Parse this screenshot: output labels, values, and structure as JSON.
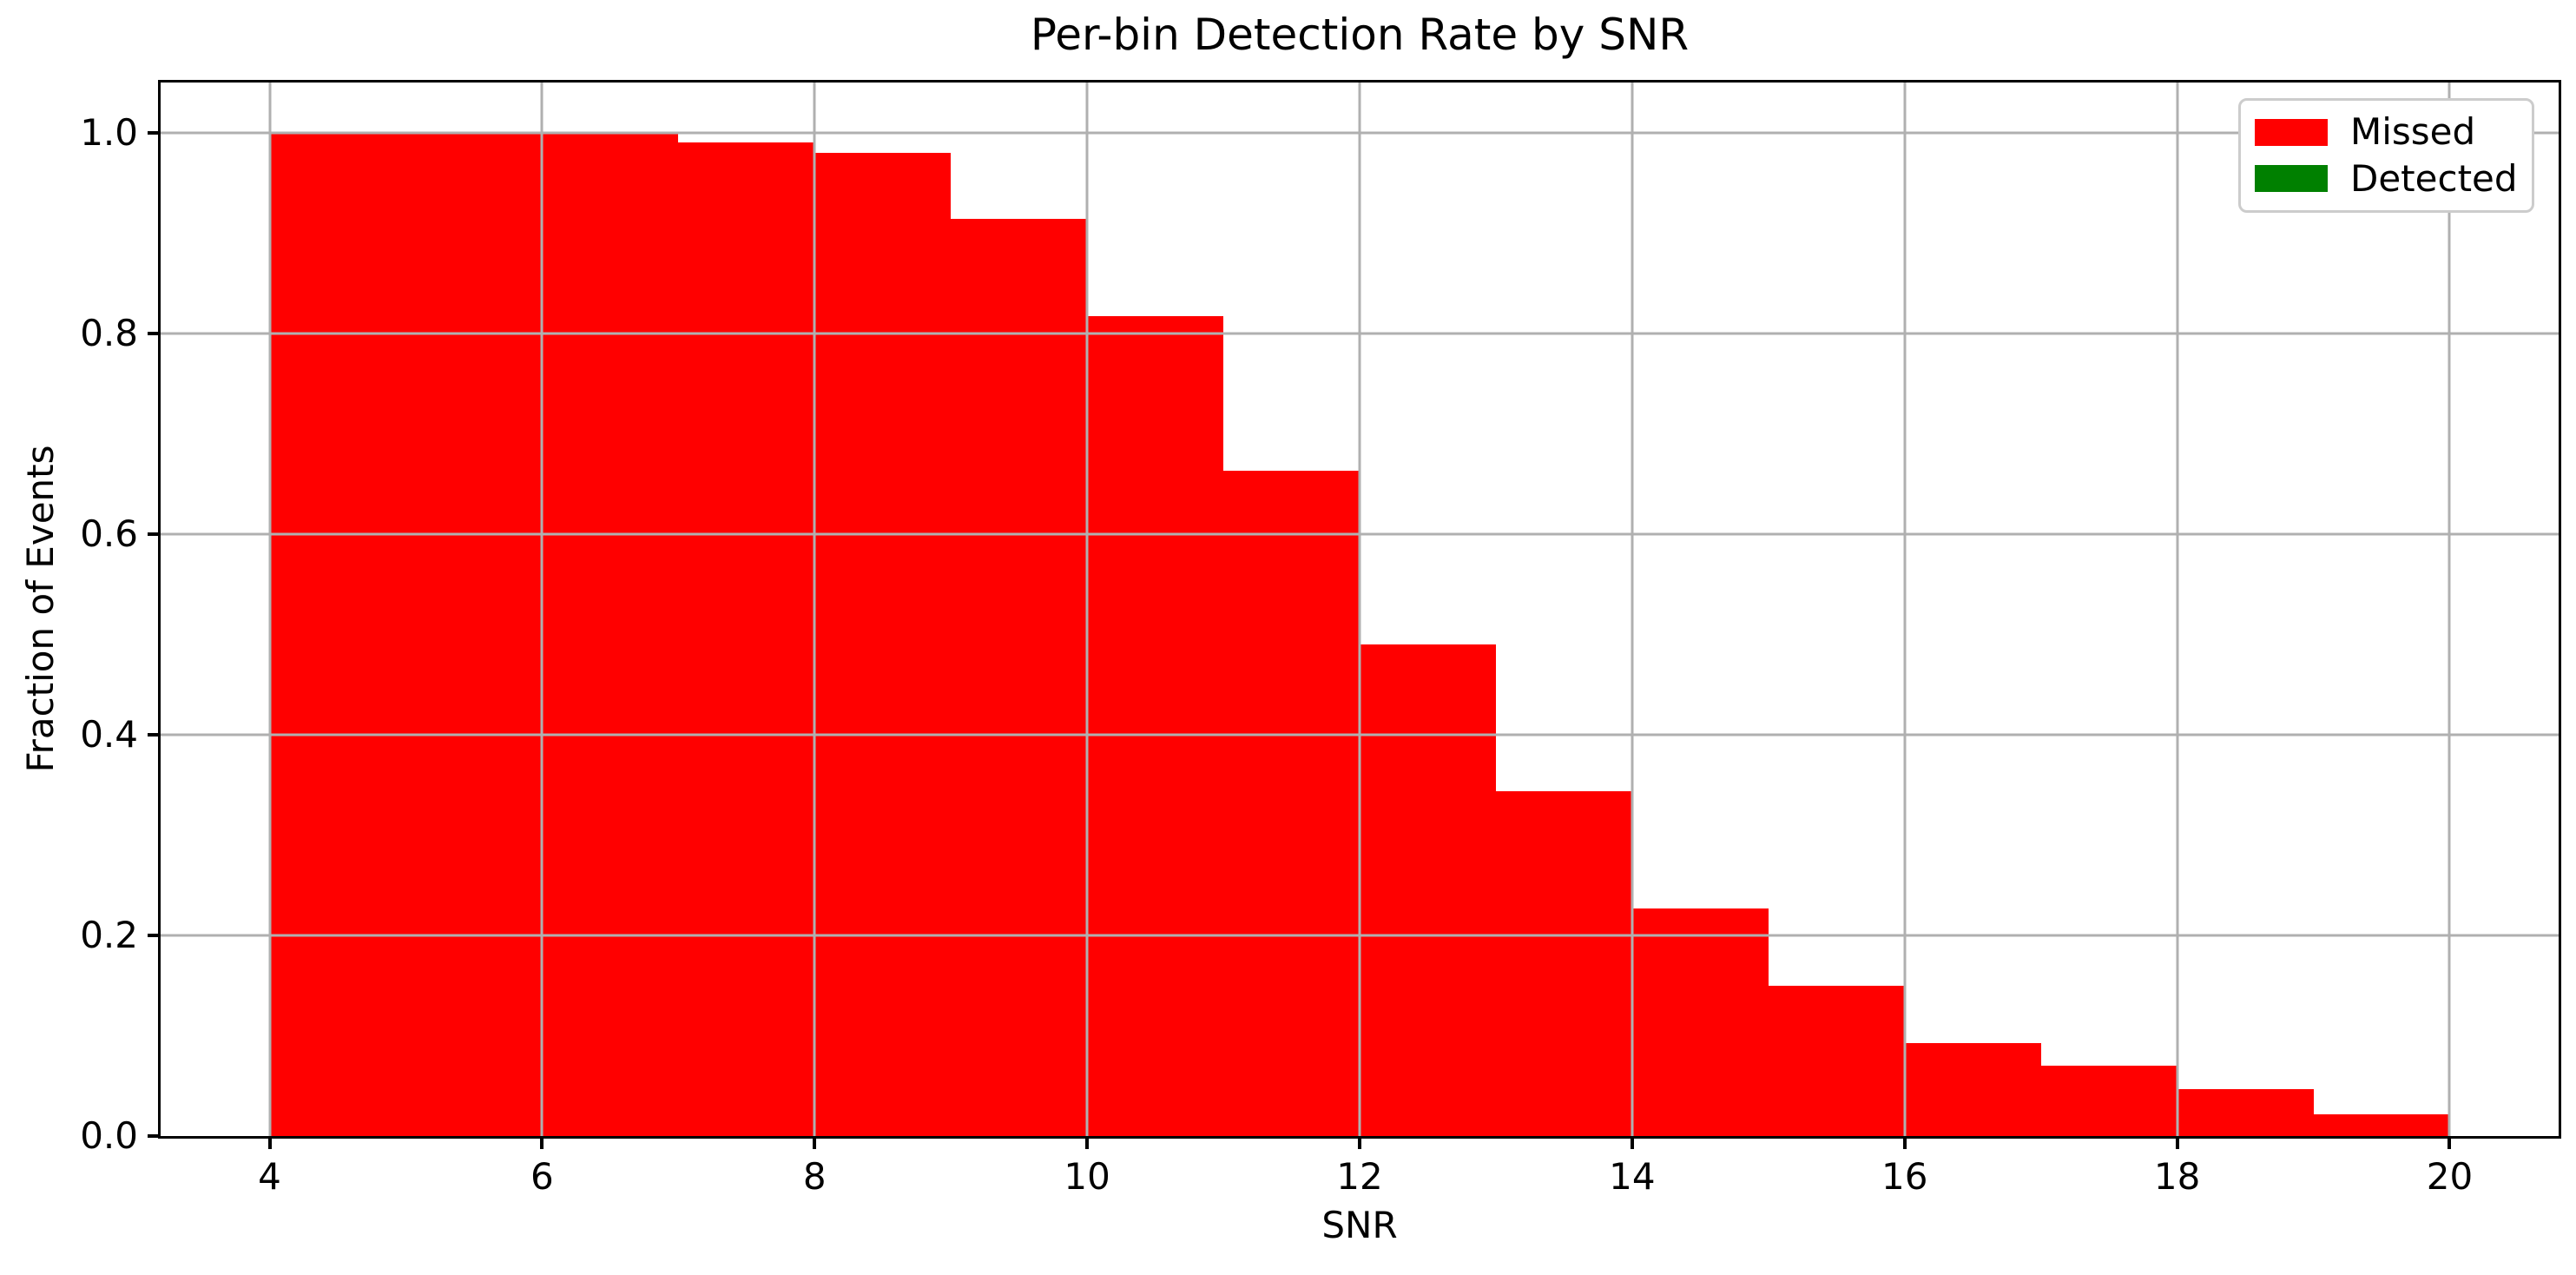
{
  "chart_data": {
    "type": "bar",
    "subtype": "stacked-histogram",
    "title": "Per-bin Detection Rate by SNR",
    "xlabel": "SNR",
    "ylabel": "Fraction of Events",
    "bin_edges": [
      4,
      5,
      6,
      7,
      8,
      9,
      10,
      11,
      12,
      13,
      14,
      15,
      16,
      17,
      18,
      19,
      20
    ],
    "series": [
      {
        "name": "Missed",
        "color": "#ff0000",
        "values": [
          1.0,
          1.0,
          1.0,
          0.99,
          0.98,
          0.914,
          0.817,
          0.663,
          0.49,
          0.344,
          0.227,
          0.15,
          0.093,
          0.07,
          0.047,
          0.022
        ]
      },
      {
        "name": "Detected",
        "color": "#008000",
        "values": [
          0,
          0,
          0,
          0,
          0,
          0,
          0,
          0,
          0,
          0,
          0,
          0,
          0,
          0,
          0,
          0
        ]
      }
    ],
    "xlim": [
      3.2,
      20.8
    ],
    "ylim": [
      0,
      1.05
    ],
    "x_ticks": [
      4,
      6,
      8,
      10,
      12,
      14,
      16,
      18,
      20
    ],
    "x_tick_labels": [
      "4",
      "6",
      "8",
      "10",
      "12",
      "14",
      "16",
      "18",
      "20"
    ],
    "y_ticks": [
      0.0,
      0.2,
      0.4,
      0.6,
      0.8,
      1.0
    ],
    "y_tick_labels": [
      "0.0",
      "0.2",
      "0.4",
      "0.6",
      "0.8",
      "1.0"
    ],
    "grid": true,
    "grid_on_top_of_bars": true,
    "grid_color": "#b0b0b0",
    "background_color": "#ffffff",
    "legend_position": "upper right",
    "legend": [
      {
        "label": "Missed",
        "color": "#ff0000"
      },
      {
        "label": "Detected",
        "color": "#008000"
      }
    ]
  }
}
